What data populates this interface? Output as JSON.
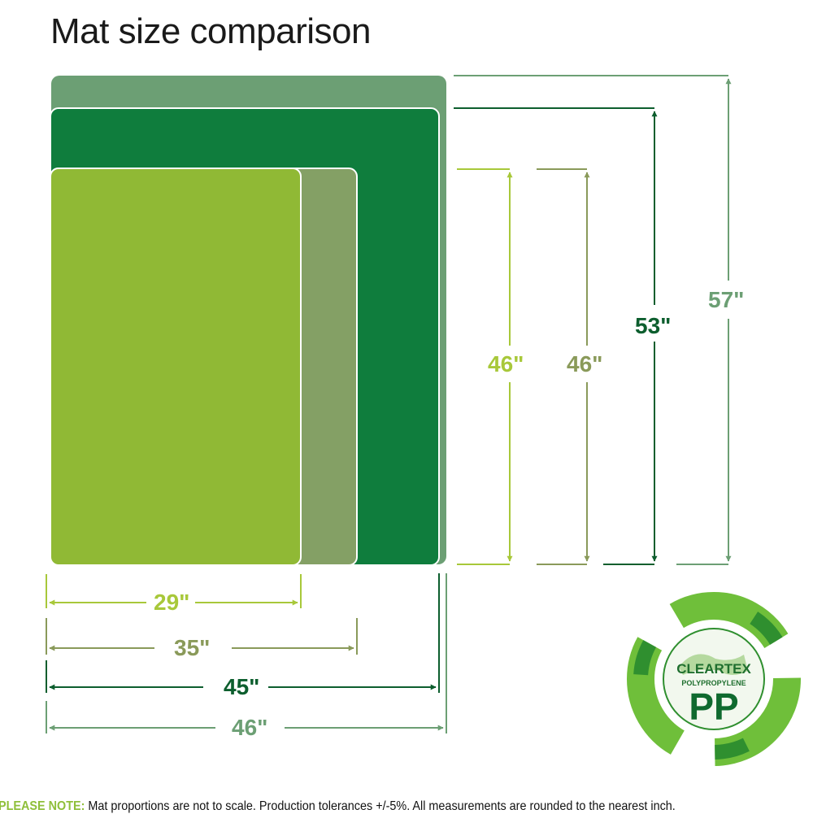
{
  "title": "Mat size comparison",
  "mats": [
    {
      "name": "outer",
      "color": "#6c9f74",
      "height": "57\"",
      "width": "46\"",
      "height_color": "#6c9f74"
    },
    {
      "name": "dark",
      "color": "#0f7d3d",
      "height": "53\"",
      "width": "45\"",
      "height_color": "#0d5e2e"
    },
    {
      "name": "olive",
      "color": "#84a065",
      "height": "46\"",
      "width": "35\"",
      "height_color": "#8a9a5a"
    },
    {
      "name": "light",
      "color": "#90b935",
      "height": "46\"",
      "width": "29\"",
      "height_color": "#a8c83a"
    }
  ],
  "logo": {
    "brand": "CLEARTEX",
    "material": "POLYPROPYLENE",
    "code": "PP"
  },
  "note": {
    "label": "PLEASE NOTE:",
    "text": " Mat proportions are not to scale. Production tolerances +/-5%. All measurements are rounded to the nearest inch."
  }
}
